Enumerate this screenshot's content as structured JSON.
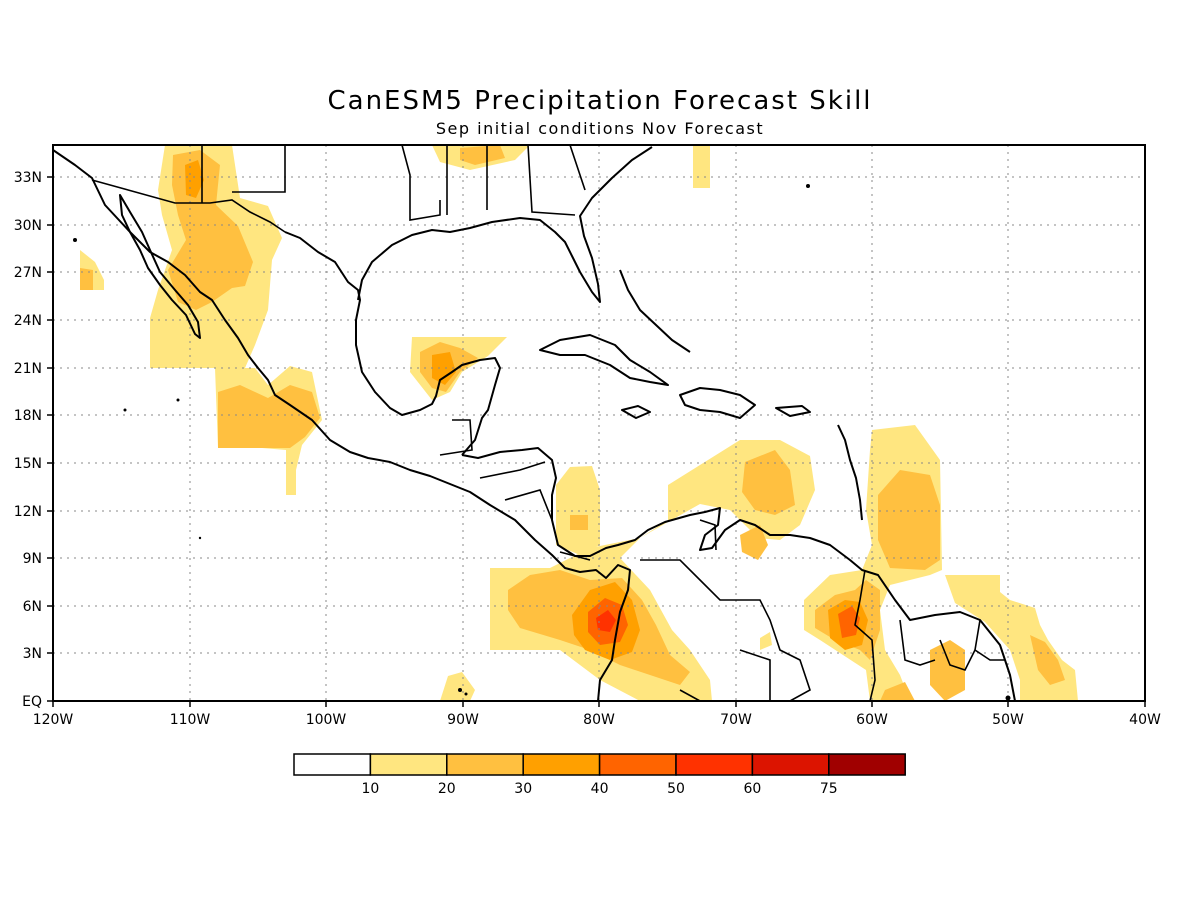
{
  "header": {
    "title": "CanESM5 Precipitation Forecast Skill",
    "subtitle": "Sep initial conditions  Nov Forecast"
  },
  "map": {
    "region": "Central America & Caribbean",
    "lon_range": [
      -120,
      -40
    ],
    "lat_range": [
      0,
      35
    ],
    "grid": true,
    "lat_labels": [
      "EQ",
      "3N",
      "6N",
      "9N",
      "12N",
      "15N",
      "18N",
      "21N",
      "24N",
      "27N",
      "30N",
      "33N"
    ],
    "lon_labels": [
      "120W",
      "110W",
      "100W",
      "90W",
      "80W",
      "70W",
      "60W",
      "50W",
      "40W"
    ]
  },
  "colorbar": {
    "labels": [
      "10",
      "20",
      "30",
      "40",
      "50",
      "60",
      "75"
    ],
    "colors": [
      "#ffffff",
      "#ffe680",
      "#ffc040",
      "#ffa000",
      "#ff6400",
      "#ff3200",
      "#dc1400",
      "#a00000"
    ]
  },
  "skill_regions": [
    {
      "region": "Baja California / NW Mexico",
      "level": "20-30"
    },
    {
      "region": "SW Mexico coast",
      "level": "20-30"
    },
    {
      "region": "Yucatan / Bay of Campeche",
      "level": "30-40"
    },
    {
      "region": "Panama / Colombia Pacific",
      "level": "50-60"
    },
    {
      "region": "Venezuela / Guyana",
      "level": "40-50"
    },
    {
      "region": "Caribbean Sea south",
      "level": "20-30"
    },
    {
      "region": "Lesser Antilles east",
      "level": "20-30"
    },
    {
      "region": "NE Brazil coast",
      "level": "20-30"
    }
  ]
}
